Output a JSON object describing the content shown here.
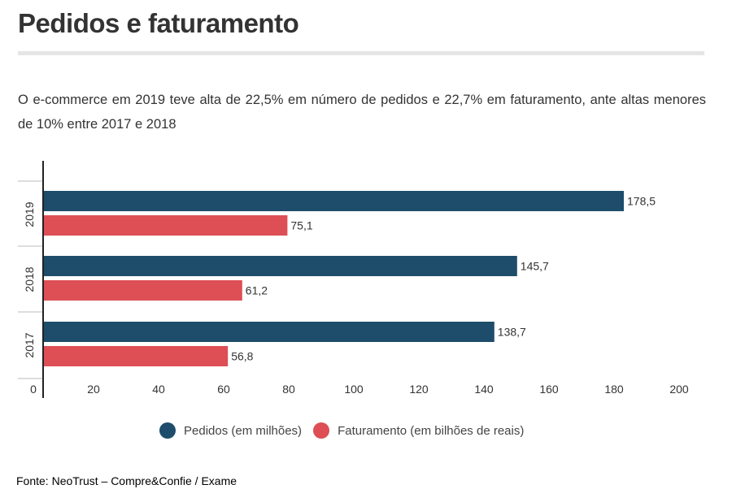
{
  "header": {
    "title": "Pedidos e faturamento",
    "subtitle": "O e-commerce em 2019 teve alta de 22,5% em número de pedidos e 22,7% em faturamento, ante altas menores de 10% entre 2017 e 2018"
  },
  "footer": {
    "source": "Fonte: NeoTrust – Compre&Confie / Exame"
  },
  "colors": {
    "pedidos": "#1e4d6b",
    "faturamento": "#dd4f55"
  },
  "chart_data": {
    "type": "bar",
    "orientation": "horizontal",
    "categories": [
      "2019",
      "2018",
      "2017"
    ],
    "series": [
      {
        "name": "Pedidos (em milhões)",
        "values": [
          178.5,
          145.7,
          138.7
        ],
        "labels": [
          "178,5",
          "145,7",
          "138,7"
        ]
      },
      {
        "name": "Faturamento (em bilhões de reais)",
        "values": [
          75.1,
          61.2,
          56.8
        ],
        "labels": [
          "75,1",
          "61,2",
          "56,8"
        ]
      }
    ],
    "xlim": [
      0,
      200
    ],
    "xticks": [
      0,
      20,
      40,
      60,
      80,
      100,
      120,
      140,
      160,
      180,
      200
    ],
    "grid": false,
    "legend_position": "bottom"
  }
}
